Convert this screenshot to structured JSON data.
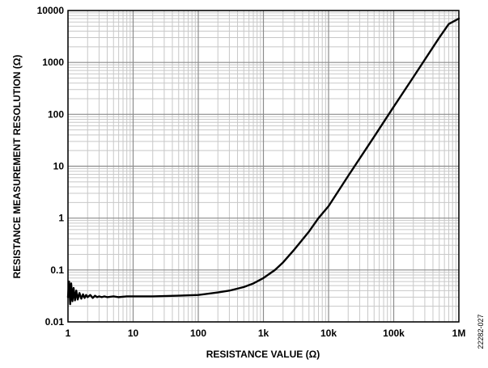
{
  "chart_data": {
    "type": "line",
    "title": "",
    "xlabel": "RESISTANCE VALUE (Ω)",
    "ylabel": "RESISTANCE MEASUREMENT RESOLUTION (Ω)",
    "x_scale": "log",
    "y_scale": "log",
    "xlim": [
      1,
      1000000
    ],
    "ylim": [
      0.01,
      10000
    ],
    "grid": true,
    "legend": "none",
    "x_ticks": [
      {
        "value": 1,
        "label": "1"
      },
      {
        "value": 10,
        "label": "10"
      },
      {
        "value": 100,
        "label": "100"
      },
      {
        "value": 1000,
        "label": "1k"
      },
      {
        "value": 10000,
        "label": "10k"
      },
      {
        "value": 100000,
        "label": "100k"
      },
      {
        "value": 1000000,
        "label": "1M"
      }
    ],
    "y_ticks": [
      {
        "value": 0.01,
        "label": "0.01"
      },
      {
        "value": 0.1,
        "label": "0.1"
      },
      {
        "value": 1,
        "label": "1"
      },
      {
        "value": 10,
        "label": "10"
      },
      {
        "value": 100,
        "label": "100"
      },
      {
        "value": 1000,
        "label": "1000"
      },
      {
        "value": 10000,
        "label": "10000"
      }
    ],
    "series": [
      {
        "color": "#000000",
        "x": [
          1,
          1.04,
          1.08,
          1.12,
          1.17,
          1.22,
          1.28,
          1.34,
          1.41,
          1.5,
          1.6,
          1.7,
          1.8,
          1.9,
          2.0,
          2.2,
          2.4,
          2.6,
          2.8,
          3.0,
          3.3,
          3.6,
          4,
          5,
          6,
          8,
          10,
          20,
          50,
          100,
          200,
          300,
          500,
          700,
          1000,
          1500,
          2000,
          3000,
          5000,
          7000,
          10000,
          20000,
          50000,
          100000,
          200000,
          500000,
          700000,
          1000000
        ],
        "y": [
          0.03,
          0.06,
          0.022,
          0.055,
          0.025,
          0.045,
          0.026,
          0.04,
          0.027,
          0.036,
          0.028,
          0.034,
          0.029,
          0.033,
          0.03,
          0.033,
          0.029,
          0.032,
          0.03,
          0.031,
          0.03,
          0.031,
          0.03,
          0.031,
          0.03,
          0.031,
          0.031,
          0.031,
          0.032,
          0.033,
          0.037,
          0.04,
          0.047,
          0.055,
          0.07,
          0.1,
          0.14,
          0.25,
          0.55,
          1.0,
          1.7,
          6.5,
          37,
          140,
          520,
          3000,
          5500,
          7000
        ]
      }
    ],
    "annotations": [
      {
        "text": "22282-027"
      }
    ]
  }
}
